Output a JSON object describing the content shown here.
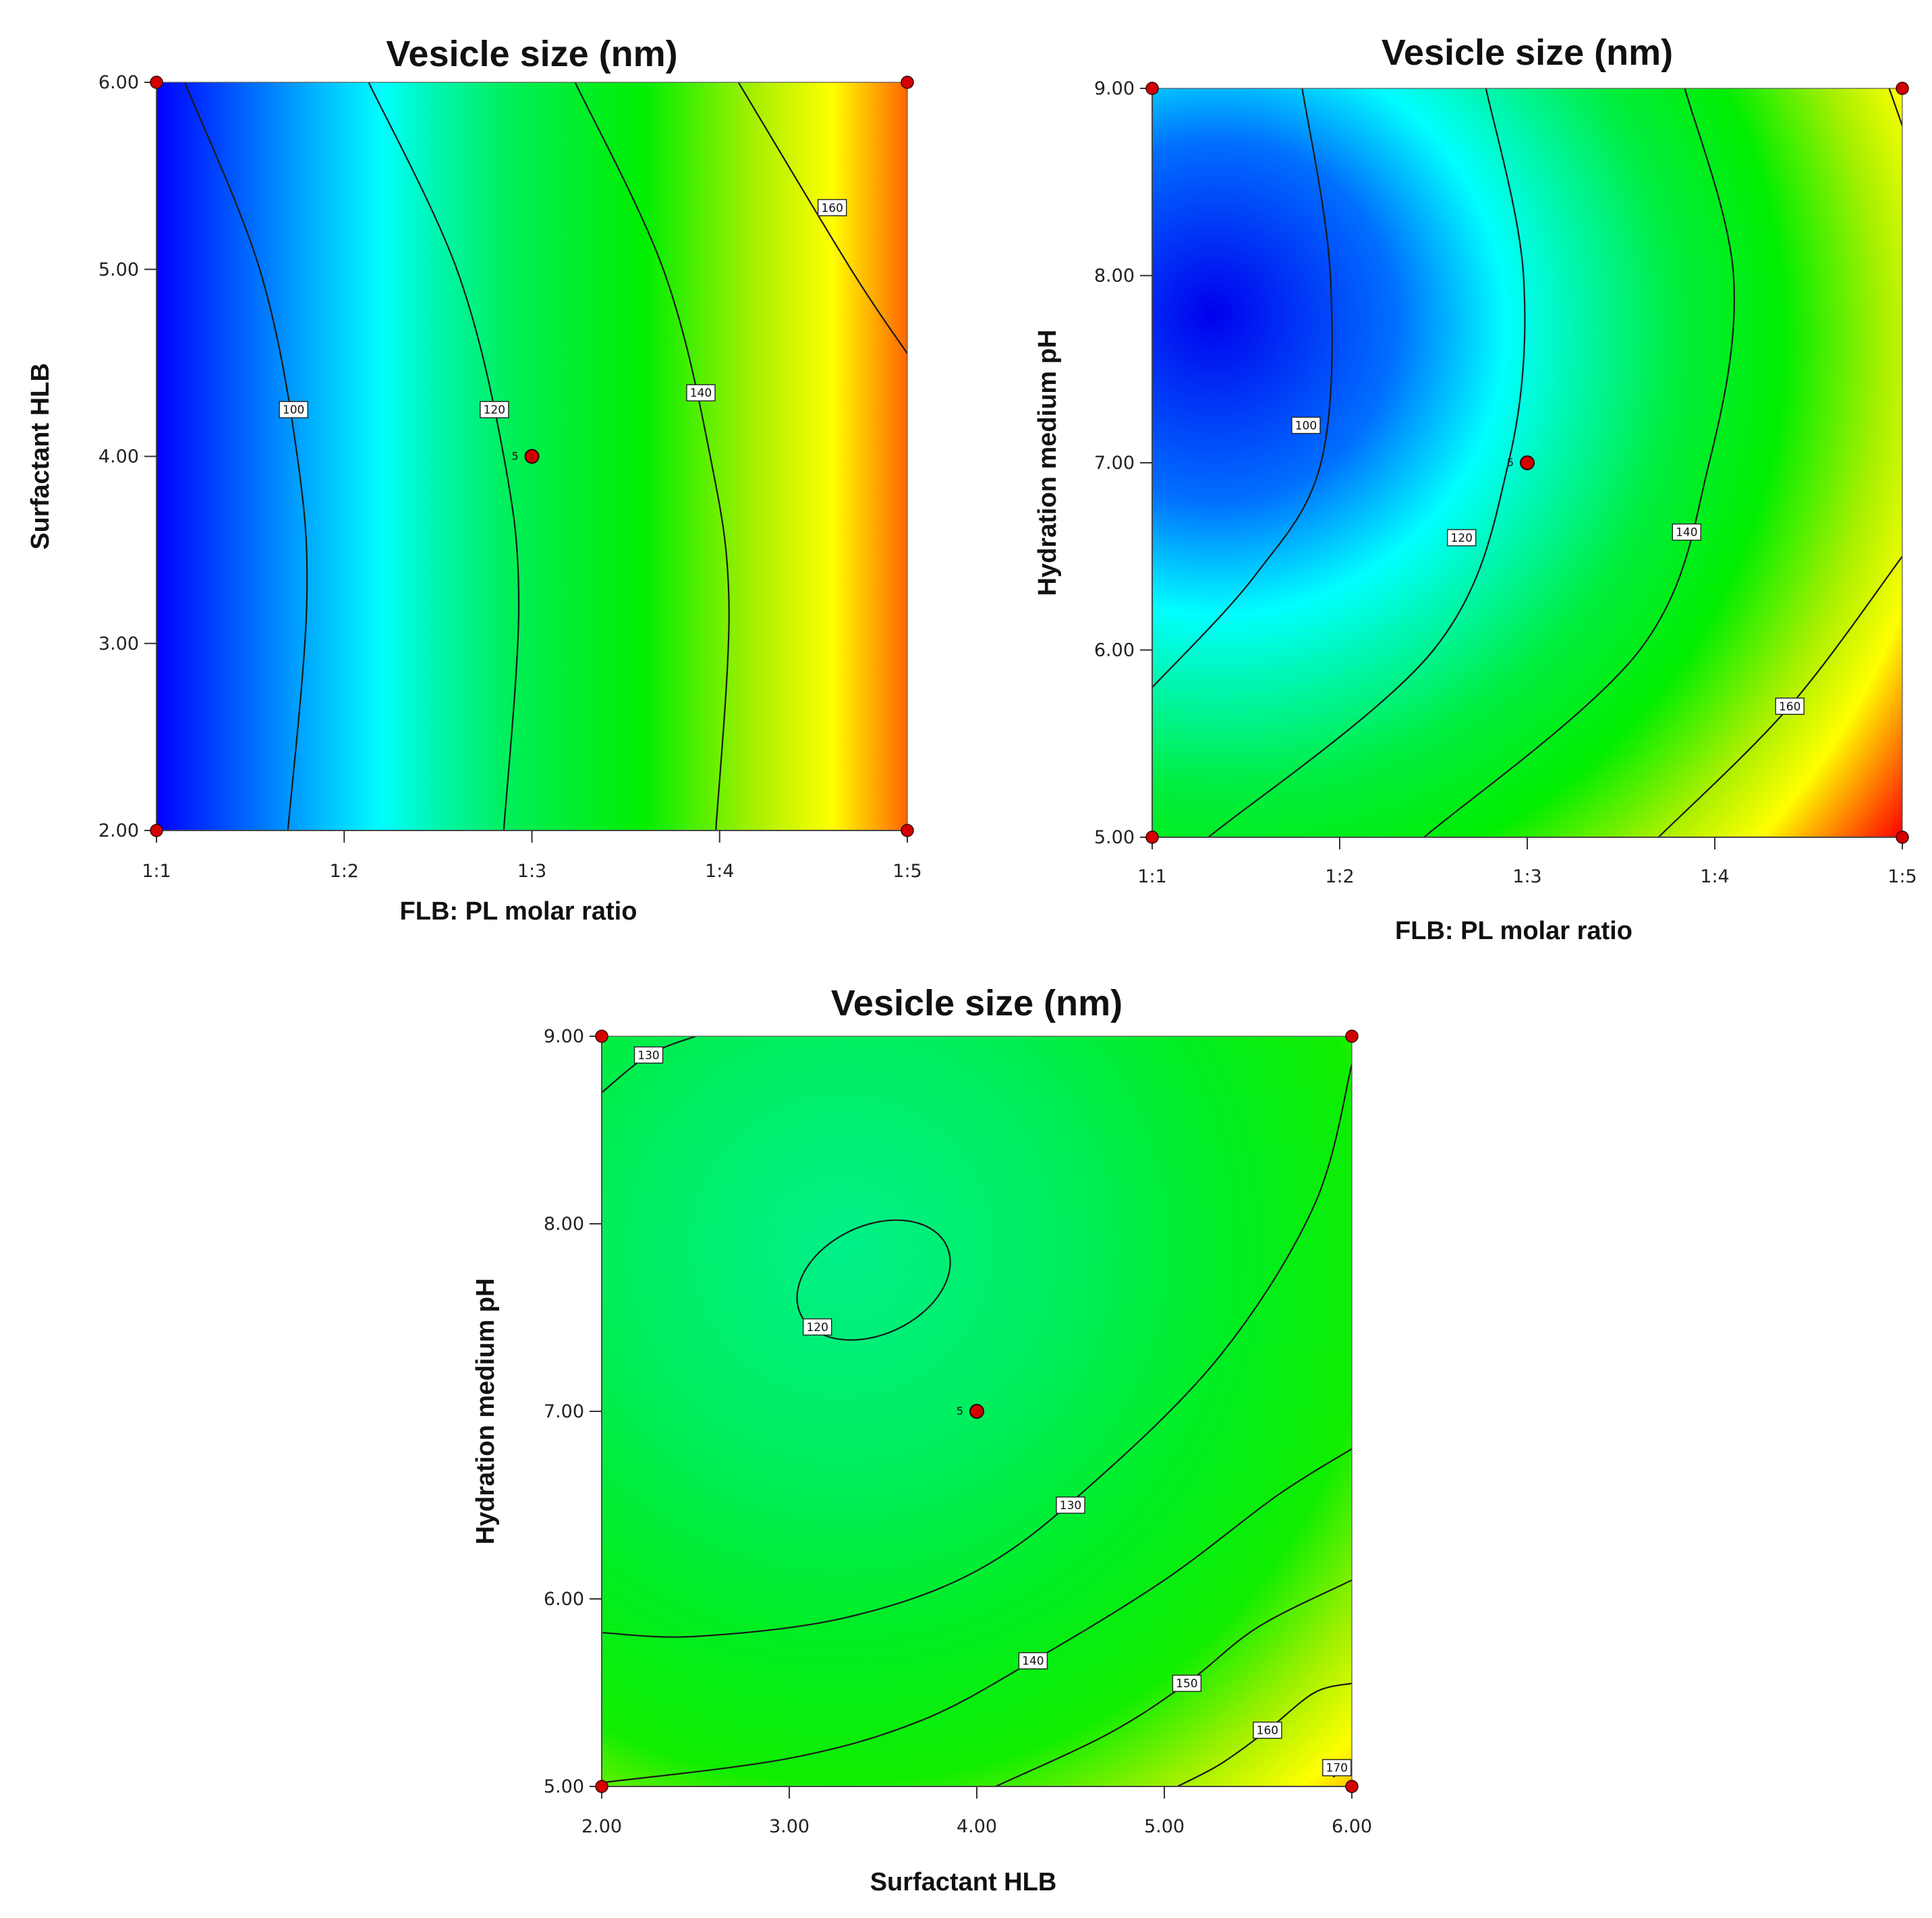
{
  "chart_data": [
    {
      "type": "contour",
      "title": "Vesicle size (nm)",
      "xlabel": "FLB: PL molar ratio",
      "ylabel": "Surfactant HLB",
      "x_ticks": [
        "1:1",
        "1:2",
        "1:3",
        "1:4",
        "1:5"
      ],
      "y_ticks": [
        "2.00",
        "3.00",
        "4.00",
        "5.00",
        "6.00"
      ],
      "xlim": [
        1,
        5
      ],
      "ylim": [
        2,
        6
      ],
      "design_points": [
        [
          1,
          2
        ],
        [
          1,
          6
        ],
        [
          5,
          2
        ],
        [
          5,
          6
        ]
      ],
      "center_point": {
        "x": 3,
        "y": 4,
        "label": "5"
      },
      "contours": [
        {
          "level": "100",
          "label_at": [
            1.73,
            4.25
          ],
          "points": [
            [
              1.15,
              6
            ],
            [
              1.55,
              5
            ],
            [
              1.75,
              4
            ],
            [
              1.8,
              3.2
            ],
            [
              1.7,
              2
            ]
          ]
        },
        {
          "level": "120",
          "label_at": [
            2.8,
            4.25
          ],
          "points": [
            [
              2.13,
              6
            ],
            [
              2.6,
              5
            ],
            [
              2.85,
              4
            ],
            [
              2.93,
              3.2
            ],
            [
              2.85,
              2
            ]
          ]
        },
        {
          "level": "140",
          "label_at": [
            3.9,
            4.34
          ],
          "points": [
            [
              3.23,
              6
            ],
            [
              3.7,
              5
            ],
            [
              3.95,
              4
            ],
            [
              4.05,
              3.2
            ],
            [
              3.98,
              2
            ]
          ]
        },
        {
          "level": "160",
          "label_at": [
            4.6,
            5.33
          ],
          "points": [
            [
              4.1,
              6
            ],
            [
              4.7,
              5
            ],
            [
              5,
              4.55
            ]
          ]
        }
      ],
      "color_gradient": {
        "type": "horizontal",
        "stops": [
          {
            "at": 0,
            "color": "#0000ff"
          },
          {
            "at": 0.3,
            "color": "#00ffff"
          },
          {
            "at": 0.38,
            "color": "#00f5a8"
          },
          {
            "at": 0.47,
            "color": "#00ef58"
          },
          {
            "at": 0.65,
            "color": "#00ee00"
          },
          {
            "at": 0.8,
            "color": "#aaf000"
          },
          {
            "at": 0.9,
            "color": "#ffff00"
          },
          {
            "at": 1,
            "color": "#ff6600"
          }
        ]
      }
    },
    {
      "type": "contour",
      "title": "Vesicle size (nm)",
      "xlabel": "FLB: PL molar ratio",
      "ylabel": "Hydration medium pH",
      "x_ticks": [
        "1:1",
        "1:2",
        "1:3",
        "1:4",
        "1:5"
      ],
      "y_ticks": [
        "5.00",
        "6.00",
        "7.00",
        "8.00",
        "9.00"
      ],
      "xlim": [
        1,
        5
      ],
      "ylim": [
        5,
        9
      ],
      "design_points": [
        [
          1,
          5
        ],
        [
          1,
          9
        ],
        [
          5,
          5
        ],
        [
          5,
          9
        ]
      ],
      "center_point": {
        "x": 3,
        "y": 7,
        "label": "5"
      },
      "contours": [
        {
          "level": "100",
          "label_at": [
            1.82,
            7.2
          ],
          "points": [
            [
              1.8,
              9
            ],
            [
              1.95,
              8
            ],
            [
              1.9,
              7
            ],
            [
              1.55,
              6.4
            ],
            [
              1,
              5.8
            ]
          ]
        },
        {
          "level": "120",
          "label_at": [
            2.65,
            6.6
          ],
          "points": [
            [
              2.78,
              9
            ],
            [
              2.98,
              8
            ],
            [
              2.9,
              7
            ],
            [
              2.5,
              6
            ],
            [
              1.3,
              5
            ]
          ]
        },
        {
          "level": "140",
          "label_at": [
            3.85,
            6.63
          ],
          "points": [
            [
              3.84,
              9
            ],
            [
              4.1,
              8
            ],
            [
              3.97,
              7
            ],
            [
              3.6,
              6
            ],
            [
              2.45,
              5
            ]
          ]
        },
        {
          "level": "160",
          "label_at": [
            4.4,
            5.7
          ],
          "points": [
            [
              5,
              6.5
            ],
            [
              4.4,
              5.7
            ],
            [
              3.7,
              5
            ]
          ]
        },
        {
          "level": "",
          "label_at": null,
          "points": [
            [
              4.93,
              9
            ],
            [
              5,
              8.8
            ]
          ]
        }
      ],
      "color_gradient": {
        "type": "radial",
        "stops": [
          {
            "at": 0,
            "color": "#0000ee"
          },
          {
            "at": 0.22,
            "color": "#0070ff"
          },
          {
            "at": 0.35,
            "color": "#00ffff"
          },
          {
            "at": 0.45,
            "color": "#00f5a0"
          },
          {
            "at": 0.55,
            "color": "#00ee40"
          },
          {
            "at": 0.68,
            "color": "#00ee00"
          },
          {
            "at": 0.8,
            "color": "#aaf000"
          },
          {
            "at": 0.88,
            "color": "#ffff00"
          },
          {
            "at": 1,
            "color": "#ff1000"
          }
        ]
      }
    },
    {
      "type": "contour",
      "title": "Vesicle size (nm)",
      "xlabel": "Surfactant HLB",
      "ylabel": "Hydration medium pH",
      "x_ticks": [
        "2.00",
        "3.00",
        "4.00",
        "5.00",
        "6.00"
      ],
      "y_ticks": [
        "5.00",
        "6.00",
        "7.00",
        "8.00",
        "9.00"
      ],
      "xlim": [
        2,
        6
      ],
      "ylim": [
        5,
        9
      ],
      "design_points": [
        [
          2,
          5
        ],
        [
          2,
          9
        ],
        [
          6,
          5
        ],
        [
          6,
          9
        ]
      ],
      "center_point": {
        "x": 4,
        "y": 7,
        "label": "5"
      },
      "contours": [
        {
          "level": "130",
          "label_at": [
            2.25,
            8.9
          ],
          "points": [
            [
              2,
              8.7
            ],
            [
              2.25,
              8.9
            ],
            [
              2.5,
              9
            ]
          ]
        },
        {
          "level": "120",
          "label_at": [
            3.15,
            7.45
          ],
          "ellipse": {
            "cx": 3.45,
            "cy": 7.7,
            "rx": 0.43,
            "ry": 0.29,
            "angle": -25
          }
        },
        {
          "level": "130",
          "label_at": [
            4.5,
            6.5
          ],
          "points": [
            [
              2,
              5.82
            ],
            [
              2.5,
              5.8
            ],
            [
              3.3,
              5.9
            ],
            [
              4,
              6.15
            ],
            [
              4.6,
              6.6
            ],
            [
              5.3,
              7.3
            ],
            [
              5.8,
              8.1
            ],
            [
              6,
              8.85
            ]
          ]
        },
        {
          "level": "140",
          "label_at": [
            4.3,
            5.67
          ],
          "points": [
            [
              2,
              5.02
            ],
            [
              3,
              5.15
            ],
            [
              3.7,
              5.35
            ],
            [
              4.3,
              5.67
            ],
            [
              5.0,
              6.1
            ],
            [
              5.6,
              6.55
            ],
            [
              6,
              6.8
            ]
          ]
        },
        {
          "level": "150",
          "label_at": [
            5.12,
            5.55
          ],
          "points": [
            [
              4.1,
              5
            ],
            [
              4.7,
              5.28
            ],
            [
              5.12,
              5.55
            ],
            [
              5.5,
              5.85
            ],
            [
              6,
              6.1
            ]
          ]
        },
        {
          "level": "160",
          "label_at": [
            5.55,
            5.3
          ],
          "points": [
            [
              5.07,
              5
            ],
            [
              5.3,
              5.12
            ],
            [
              5.55,
              5.3
            ],
            [
              5.8,
              5.5
            ],
            [
              6,
              5.55
            ]
          ]
        },
        {
          "level": "170",
          "label_at": [
            5.92,
            5.1
          ],
          "points": [
            [
              5.9,
              5.05
            ],
            [
              6,
              5.12
            ]
          ]
        }
      ],
      "color_gradient": {
        "type": "radial-offset",
        "stops": [
          {
            "at": 0,
            "color": "#00f08a"
          },
          {
            "at": 0.3,
            "color": "#00ee5a"
          },
          {
            "at": 0.5,
            "color": "#00ee22"
          },
          {
            "at": 0.68,
            "color": "#10ee00"
          },
          {
            "at": 0.8,
            "color": "#a0f000"
          },
          {
            "at": 0.9,
            "color": "#ffff00"
          },
          {
            "at": 1,
            "color": "#ff7a00"
          }
        ]
      }
    }
  ],
  "colors": {
    "contour_line": "#1a1a1a",
    "design_point": "#d40000",
    "axis": "#333333"
  }
}
